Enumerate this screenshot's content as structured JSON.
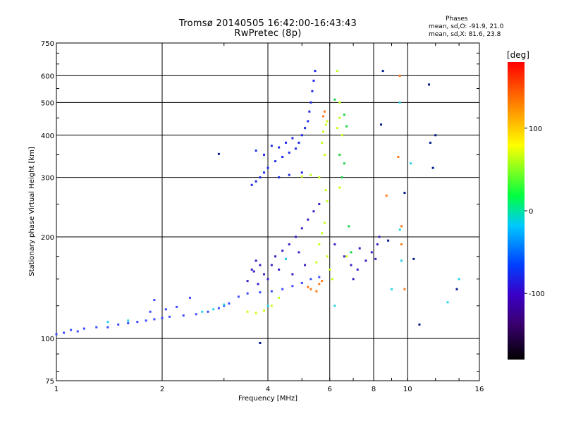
{
  "header": {
    "title": "Tromsø 20140505 16:42:00-16:43:43",
    "subtitle": "RwPretec (8p)",
    "stats_heading": "Phases",
    "stats_o": "mean, sd,O: -91.9, 21.0",
    "stats_x": "mean, sd,X:  81.6, 23.8"
  },
  "colorbar": {
    "unit": "[deg]",
    "ticks": [
      100,
      0,
      -100
    ],
    "range": [
      -180,
      180
    ]
  },
  "chart_data": {
    "type": "scatter",
    "xlabel": "Frequency [MHz]",
    "ylabel": "Stationary phase Virtual Height [km]",
    "x_scale": "log",
    "y_scale": "log",
    "xlim": [
      1,
      16
    ],
    "ylim": [
      75,
      750
    ],
    "x_ticks": [
      1,
      2,
      4,
      6,
      8,
      10,
      16
    ],
    "y_ticks": [
      75,
      100,
      200,
      300,
      400,
      500,
      600,
      750
    ],
    "grid": true,
    "series": [
      {
        "color": "#3a4cff",
        "points": [
          [
            1.0,
            103
          ],
          [
            1.05,
            104
          ],
          [
            1.1,
            106
          ],
          [
            1.15,
            105
          ],
          [
            1.2,
            107
          ],
          [
            1.3,
            108
          ],
          [
            1.4,
            108
          ],
          [
            1.5,
            110
          ],
          [
            1.6,
            111
          ],
          [
            1.7,
            112
          ],
          [
            1.8,
            113
          ],
          [
            1.9,
            114
          ],
          [
            2.0,
            115
          ],
          [
            2.1,
            116
          ],
          [
            2.3,
            117
          ],
          [
            2.5,
            118
          ],
          [
            2.7,
            120
          ],
          [
            2.9,
            123
          ],
          [
            3.1,
            127
          ],
          [
            3.3,
            133
          ],
          [
            3.5,
            136
          ],
          [
            3.8,
            137
          ],
          [
            4.1,
            138
          ],
          [
            4.4,
            140
          ],
          [
            4.7,
            143
          ],
          [
            5.0,
            146
          ],
          [
            5.3,
            150
          ],
          [
            5.6,
            152
          ],
          [
            1.9,
            130
          ],
          [
            2.4,
            132
          ],
          [
            3.0,
            125
          ],
          [
            2.2,
            124
          ],
          [
            1.85,
            120
          ],
          [
            2.05,
            122
          ]
        ]
      },
      {
        "color": "#1f2ae8",
        "points": [
          [
            3.6,
            285
          ],
          [
            3.7,
            292
          ],
          [
            3.8,
            300
          ],
          [
            3.9,
            310
          ],
          [
            4.0,
            320
          ],
          [
            4.2,
            335
          ],
          [
            4.4,
            345
          ],
          [
            4.6,
            355
          ],
          [
            4.8,
            365
          ],
          [
            4.9,
            380
          ],
          [
            5.0,
            400
          ],
          [
            5.1,
            420
          ],
          [
            5.2,
            440
          ],
          [
            5.25,
            470
          ],
          [
            5.3,
            500
          ],
          [
            5.35,
            540
          ],
          [
            5.4,
            580
          ],
          [
            5.45,
            620
          ],
          [
            3.7,
            360
          ],
          [
            3.9,
            350
          ],
          [
            4.1,
            372
          ],
          [
            4.3,
            368
          ],
          [
            4.5,
            380
          ],
          [
            4.7,
            392
          ],
          [
            4.3,
            300
          ],
          [
            4.6,
            305
          ],
          [
            5.0,
            310
          ]
        ]
      },
      {
        "color": "#3b1fc4",
        "points": [
          [
            4.2,
            175
          ],
          [
            4.4,
            182
          ],
          [
            4.6,
            190
          ],
          [
            4.8,
            200
          ],
          [
            5.0,
            212
          ],
          [
            5.2,
            225
          ],
          [
            5.4,
            238
          ],
          [
            5.6,
            250
          ],
          [
            4.1,
            165
          ],
          [
            4.5,
            172
          ],
          [
            4.9,
            180
          ],
          [
            3.6,
            160
          ],
          [
            3.7,
            170
          ],
          [
            3.8,
            165
          ],
          [
            3.9,
            155
          ],
          [
            4.0,
            150
          ],
          [
            3.5,
            148
          ],
          [
            3.65,
            158
          ],
          [
            3.75,
            145
          ],
          [
            4.3,
            160
          ],
          [
            4.7,
            155
          ],
          [
            5.1,
            165
          ],
          [
            7.0,
            150
          ],
          [
            7.2,
            160
          ],
          [
            7.6,
            170
          ],
          [
            7.9,
            180
          ],
          [
            8.2,
            190
          ],
          [
            8.3,
            200
          ],
          [
            8.1,
            172
          ],
          [
            7.3,
            185
          ],
          [
            6.2,
            190
          ],
          [
            6.6,
            175
          ],
          [
            6.9,
            165
          ]
        ]
      },
      {
        "color": "#c8ff1a",
        "points": [
          [
            3.5,
            120
          ],
          [
            3.7,
            119
          ],
          [
            3.9,
            121
          ],
          [
            4.1,
            125
          ],
          [
            4.3,
            132
          ],
          [
            5.8,
            350
          ],
          [
            5.7,
            380
          ],
          [
            5.75,
            410
          ],
          [
            5.85,
            430
          ],
          [
            5.9,
            440
          ],
          [
            5.6,
            300
          ],
          [
            5.3,
            305
          ],
          [
            5.0,
            302
          ],
          [
            5.85,
            275
          ],
          [
            5.9,
            255
          ],
          [
            5.8,
            220
          ],
          [
            5.7,
            205
          ],
          [
            5.9,
            175
          ],
          [
            6.0,
            160
          ],
          [
            6.1,
            150
          ],
          [
            6.3,
            420
          ],
          [
            6.4,
            450
          ],
          [
            6.5,
            400
          ],
          [
            6.7,
            175
          ],
          [
            6.4,
            280
          ],
          [
            6.3,
            620
          ],
          [
            6.4,
            500
          ],
          [
            5.6,
            190
          ],
          [
            5.5,
            168
          ]
        ]
      },
      {
        "color": "#ff7a1a",
        "points": [
          [
            5.3,
            140
          ],
          [
            5.6,
            145
          ],
          [
            5.5,
            138
          ],
          [
            5.7,
            148
          ],
          [
            5.2,
            142
          ],
          [
            9.5,
            600
          ],
          [
            9.4,
            345
          ],
          [
            9.6,
            215
          ],
          [
            9.8,
            140
          ],
          [
            8.7,
            265
          ],
          [
            9.6,
            190
          ],
          [
            5.8,
            470
          ],
          [
            5.75,
            455
          ]
        ]
      },
      {
        "color": "#2ad4e8",
        "points": [
          [
            2.6,
            120
          ],
          [
            2.8,
            122
          ],
          [
            3.0,
            126
          ],
          [
            1.4,
            112
          ],
          [
            1.6,
            113
          ],
          [
            4.5,
            172
          ],
          [
            4.0,
            125
          ],
          [
            6.2,
            125
          ],
          [
            14.0,
            150
          ],
          [
            13.0,
            128
          ],
          [
            9.5,
            500
          ],
          [
            9.5,
            210
          ],
          [
            9.6,
            170
          ],
          [
            10.2,
            330
          ],
          [
            9.0,
            140
          ]
        ]
      },
      {
        "color": "#001a8c",
        "points": [
          [
            3.8,
            97
          ],
          [
            2.9,
            352
          ],
          [
            8.4,
            430
          ],
          [
            8.5,
            620
          ],
          [
            11.5,
            565
          ],
          [
            11.6,
            380
          ],
          [
            11.8,
            320
          ],
          [
            10.4,
            172
          ],
          [
            10.8,
            110
          ],
          [
            12.0,
            400
          ],
          [
            13.8,
            140
          ],
          [
            8.8,
            195
          ],
          [
            9.8,
            270
          ]
        ]
      },
      {
        "color": "#1fd44a",
        "points": [
          [
            6.6,
            330
          ],
          [
            6.4,
            350
          ],
          [
            6.5,
            300
          ],
          [
            6.8,
            215
          ],
          [
            6.9,
            180
          ],
          [
            6.7,
            425
          ],
          [
            6.2,
            510
          ],
          [
            6.6,
            460
          ]
        ]
      }
    ]
  }
}
